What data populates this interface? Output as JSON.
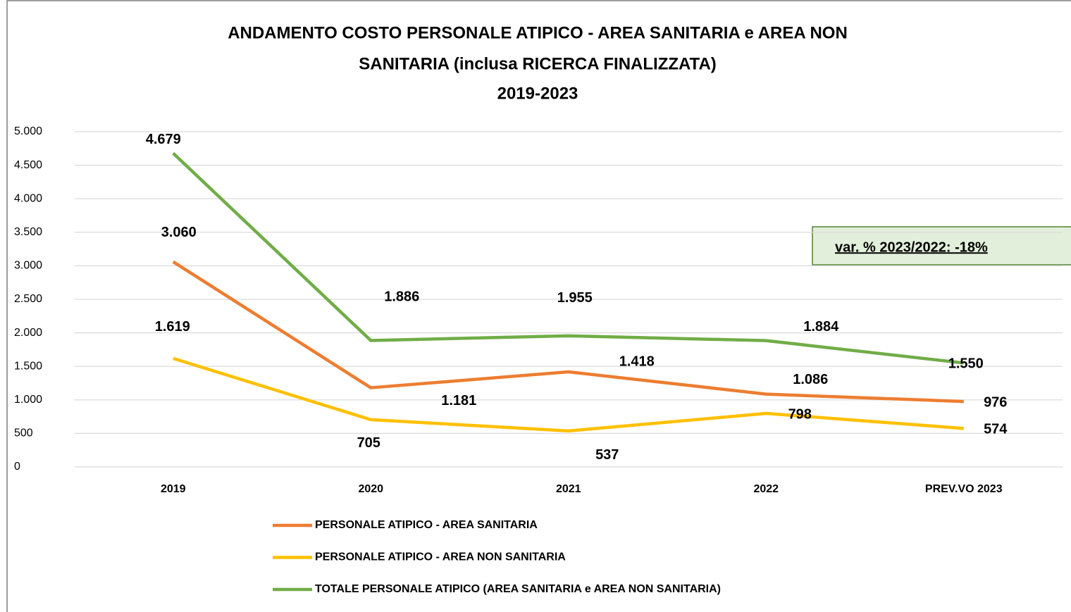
{
  "chart_data": {
    "type": "line",
    "title": [
      "ANDAMENTO COSTO PERSONALE ATIPICO - AREA SANITARIA e AREA NON",
      "SANITARIA (inclusa RICERCA FINALIZZATA)",
      "2019-2023"
    ],
    "categories": [
      "2019",
      "2020",
      "2021",
      "2022",
      "PREV.VO 2023"
    ],
    "series": [
      {
        "name": "PERSONALE ATIPICO - AREA SANITARIA",
        "color": "#ED7D31",
        "values": [
          3060,
          1181,
          1418,
          1086,
          976
        ],
        "value_labels": [
          "3.060",
          "1.181",
          "1.418",
          "1.086",
          "976"
        ]
      },
      {
        "name": "PERSONALE ATIPICO - AREA NON SANITARIA",
        "color": "#FFC000",
        "values": [
          1619,
          705,
          537,
          798,
          574
        ],
        "value_labels": [
          "1.619",
          "705",
          "537",
          "798",
          "574"
        ]
      },
      {
        "name": "TOTALE PERSONALE ATIPICO (AREA SANITARIA e AREA NON SANITARIA)",
        "color": "#70AD47",
        "values": [
          4679,
          1886,
          1955,
          1884,
          1550
        ],
        "value_labels": [
          "4.679",
          "1.886",
          "1.955",
          "1.884",
          "1.550"
        ]
      }
    ],
    "ylim": [
      0,
      5000
    ],
    "yticks": [
      0,
      500,
      {
        "value": 1000,
        "label": "1.000"
      },
      {
        "value": 1500,
        "label": "1.500"
      },
      {
        "value": 2000,
        "label": "2.000"
      },
      {
        "value": 2500,
        "label": "2.500"
      },
      {
        "value": 3000,
        "label": "3.000"
      },
      {
        "value": 3500,
        "label": "3.500"
      },
      {
        "value": 4000,
        "label": "4.000"
      },
      {
        "value": 4500,
        "label": "4.500"
      },
      {
        "value": 5000,
        "label": "5.000"
      }
    ],
    "grid": true,
    "legend": "bottom",
    "annotation": "var. %  2023/2022: -18%"
  }
}
